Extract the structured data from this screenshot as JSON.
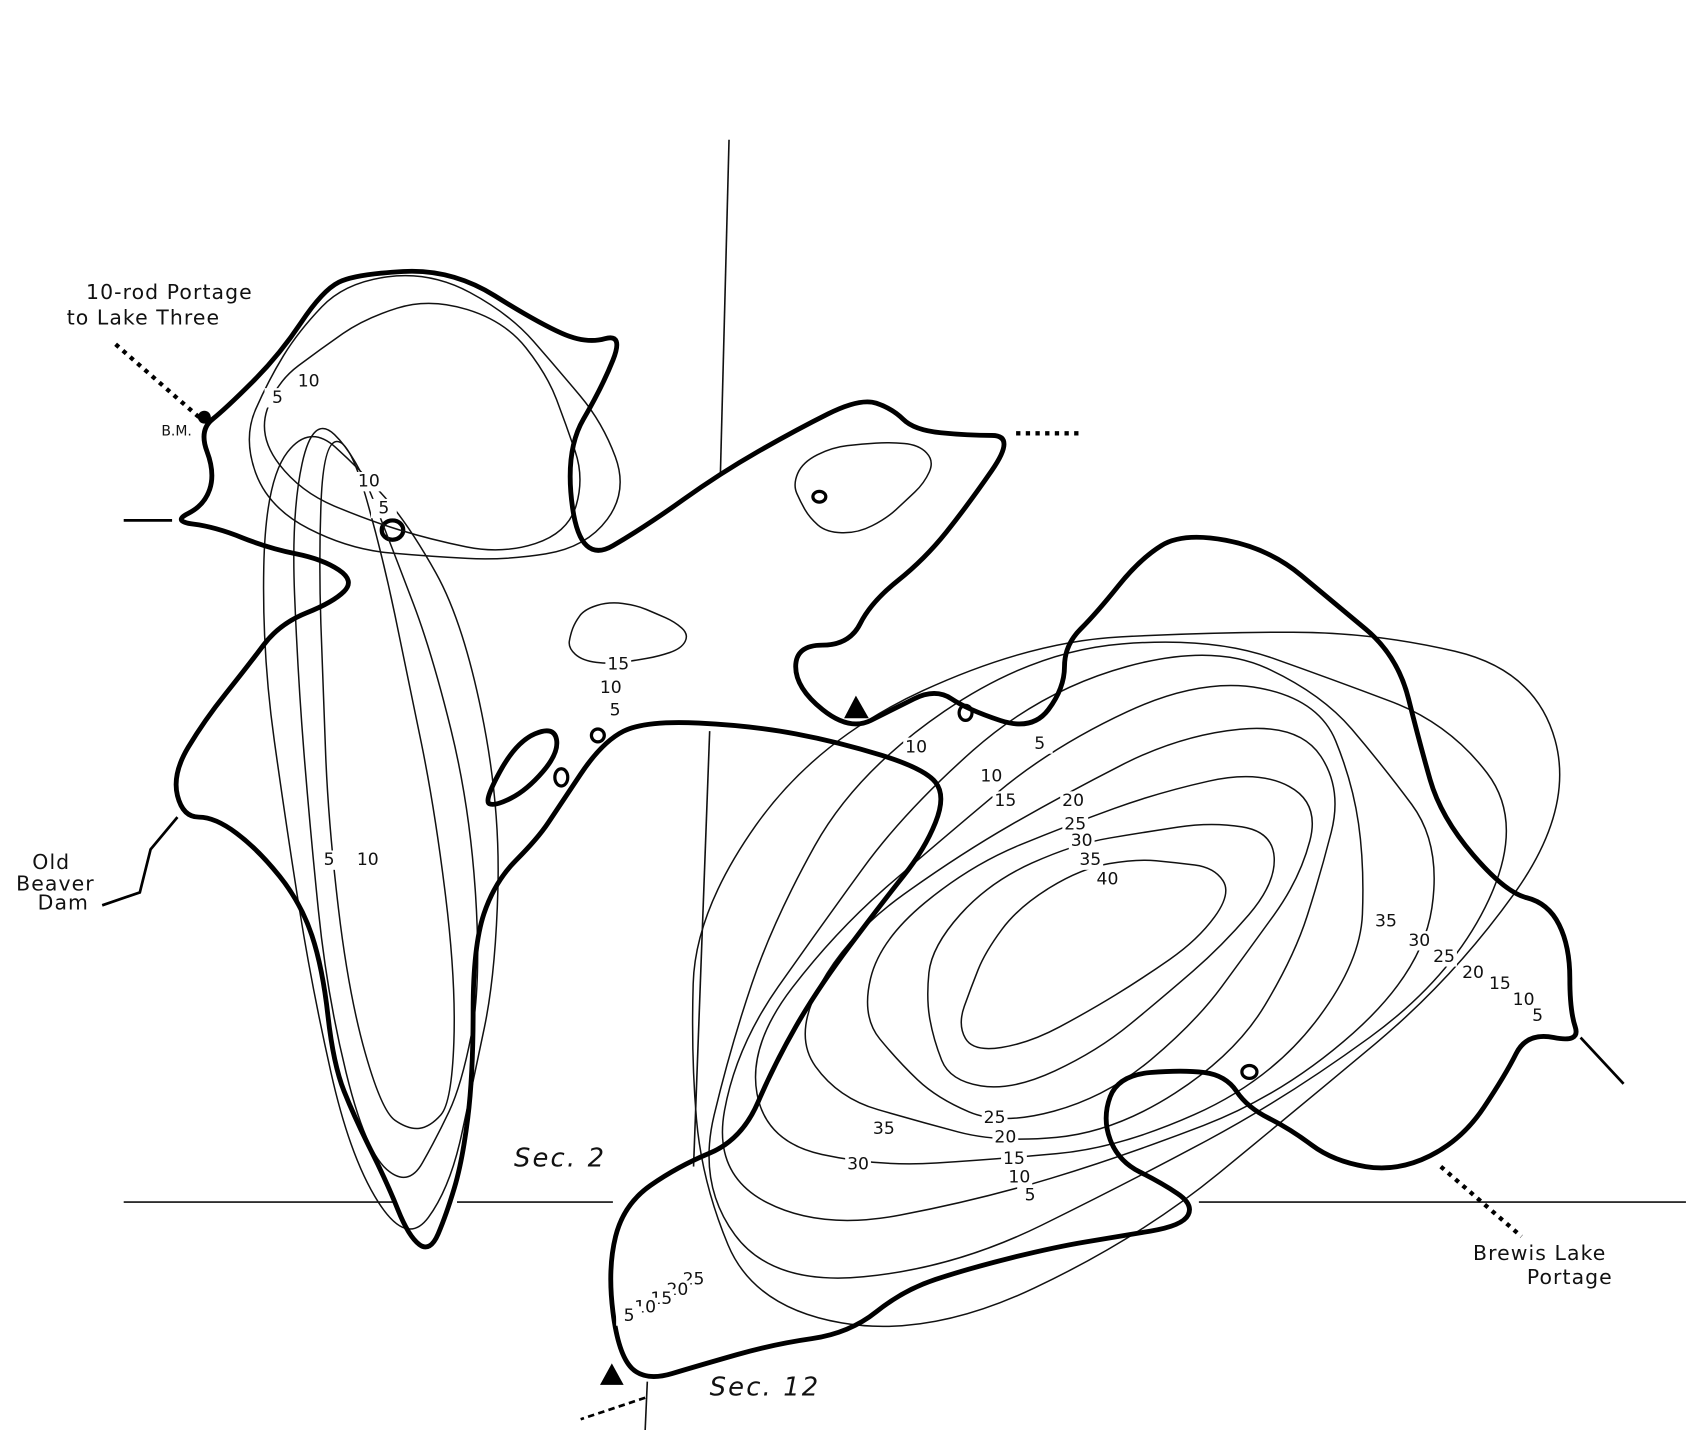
{
  "labels": {
    "portage_lake_three": [
      "10-rod Portage",
      "to Lake Three"
    ],
    "bm": "B.M.",
    "beaver_dam": [
      "Old",
      "Beaver",
      "Dam"
    ],
    "sec_2": "Sec. 2",
    "sec_12": "Sec. 12",
    "brewis_portage": [
      "Brewis Lake",
      "Portage"
    ]
  },
  "depth_labels": [
    5,
    10,
    10,
    5,
    5,
    10,
    15,
    10,
    5,
    10,
    5,
    10,
    15,
    20,
    25,
    30,
    35,
    40,
    35,
    30,
    25,
    20,
    15,
    10,
    5,
    35,
    30,
    25,
    20,
    15,
    10,
    5,
    25,
    20,
    15,
    10,
    5
  ]
}
